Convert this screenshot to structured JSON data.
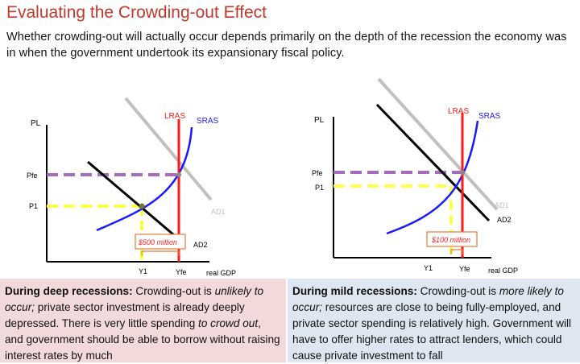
{
  "slide": {
    "title": "Evaluating the Crowding-out Effect",
    "subtitle": "Whether crowding-out will actually occur depends primarily on the depth of the recession the economy was in when the government undertook its expansionary fiscal policy."
  },
  "graphs": {
    "left": {
      "label_pl": "PL",
      "label_lras": "LRAS",
      "label_sras": "SRAS",
      "label_pfe": "Pfe",
      "label_p1": "P1",
      "label_ad1": "AD1",
      "label_ad2": "AD2",
      "label_gap": "$500 million",
      "label_y1": "Y1",
      "label_yfe": "Yfe",
      "label_x": "real GDP"
    },
    "right": {
      "label_pl": "PL",
      "label_lras": "LRAS",
      "label_sras": "SRAS",
      "label_pfe": "Pfe",
      "label_p1": "P1",
      "label_ad1": "AD1",
      "label_ad2": "AD2",
      "label_gap": "$100 million",
      "label_y1": "Y1",
      "label_yfe": "Yfe",
      "label_x": "real GDP"
    }
  },
  "boxes": {
    "left": {
      "lead": "During deep recessions:",
      "t1": " Crowding-out is ",
      "em": "unlikely to occur;",
      "t2": " private sector investment is already deeply depressed. There is very little spending ",
      "em2": "to crowd out",
      "t3": ", and government should be able to borrow without raising interest rates by much"
    },
    "right": {
      "lead": "During mild recessions:",
      "t1": " Crowding-out is ",
      "em": "more likely to occur;",
      "t2": " resources are close to being fully-employed, and private sector spending is relatively high. Government will have to offer higher rates to attract lenders, which could cause private investment to fall"
    }
  },
  "colors": {
    "title": "#c0392b",
    "lras": "#ff1a1a",
    "sras": "#1a1aff",
    "ad1": "#c0c0c0",
    "ad2": "#000000",
    "pfe_line": "#a66bbf",
    "p1_line": "#ffff4d",
    "gap_box": "#e47b3a",
    "left_box": "#f2dada",
    "right_box": "#dde6f1"
  }
}
